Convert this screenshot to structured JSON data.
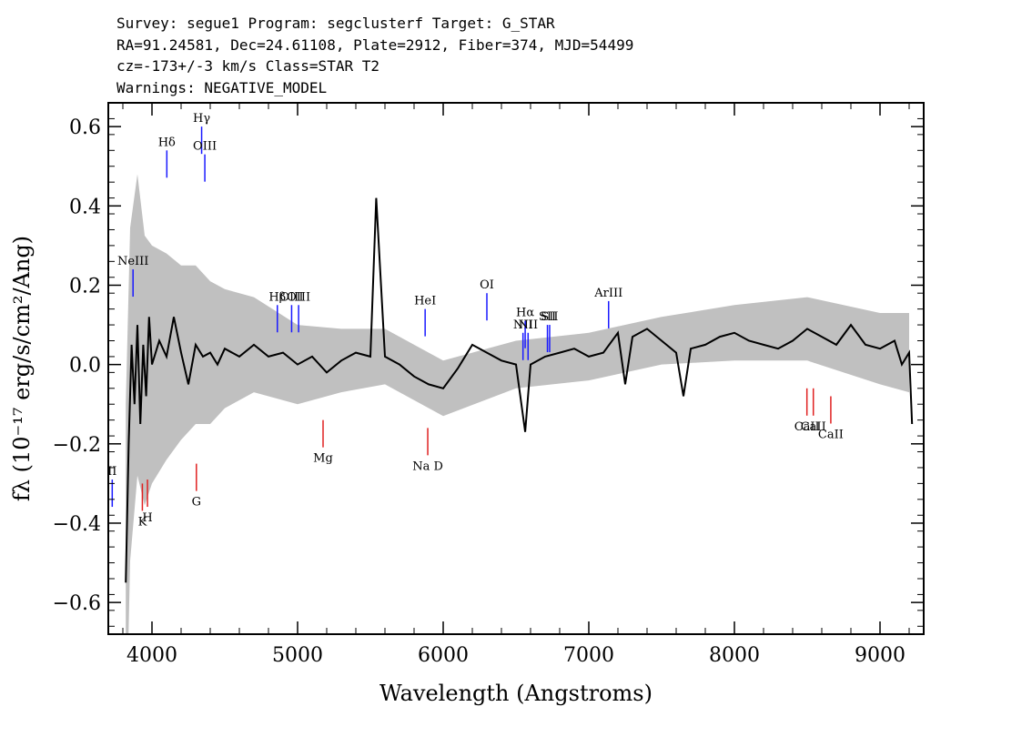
{
  "header": {
    "line1": "Survey: segue1 Program: segclusterf Target: G_STAR",
    "line2": "RA=91.24581, Dec=24.61108, Plate=2912, Fiber=374, MJD=54499",
    "line3": "cz=-173+/-3 km/s Class=STAR T2",
    "line4": "Warnings: NEGATIVE_MODEL"
  },
  "chart_data": {
    "type": "line",
    "title": "",
    "xlabel": "Wavelength (Angstroms)",
    "ylabel": "fλ (10⁻¹⁷ erg/s/cm²/Ang)",
    "xlim": [
      3700,
      9300
    ],
    "ylim": [
      -0.68,
      0.66
    ],
    "x_ticks": [
      4000,
      5000,
      6000,
      7000,
      8000,
      9000
    ],
    "y_ticks": [
      -0.6,
      -0.4,
      -0.2,
      0.0,
      0.2,
      0.4,
      0.6
    ],
    "x_tick_labels": [
      "4000",
      "5000",
      "6000",
      "7000",
      "8000",
      "9000"
    ],
    "y_tick_labels": [
      "−0.6",
      "−0.4",
      "−0.2",
      "0.0",
      "0.2",
      "0.4",
      "0.6"
    ],
    "grid": false,
    "series": [
      {
        "role": "error",
        "color": "#c0c0c0",
        "x": [
          3820,
          3850,
          3900,
          3950,
          4000,
          4100,
          4200,
          4300,
          4400,
          4500,
          4700,
          5000,
          5300,
          5600,
          6000,
          6500,
          7000,
          7500,
          8000,
          8500,
          9000,
          9200
        ],
        "y": [
          0.45,
          0.42,
          0.38,
          0.34,
          0.3,
          0.26,
          0.22,
          0.2,
          0.18,
          0.15,
          0.12,
          0.1,
          0.08,
          0.07,
          0.07,
          0.06,
          0.06,
          0.06,
          0.07,
          0.08,
          0.09,
          0.1
        ]
      },
      {
        "role": "flux",
        "color": "#000000",
        "x": [
          3820,
          3840,
          3860,
          3880,
          3900,
          3920,
          3940,
          3960,
          3980,
          4000,
          4050,
          4100,
          4150,
          4200,
          4250,
          4300,
          4350,
          4400,
          4450,
          4500,
          4600,
          4700,
          4800,
          4900,
          5000,
          5100,
          5200,
          5300,
          5400,
          5500,
          5540,
          5600,
          5700,
          5800,
          5900,
          6000,
          6100,
          6200,
          6300,
          6400,
          6500,
          6563,
          6600,
          6700,
          6800,
          6900,
          7000,
          7100,
          7200,
          7250,
          7300,
          7400,
          7500,
          7600,
          7650,
          7700,
          7800,
          7900,
          8000,
          8100,
          8200,
          8300,
          8400,
          8500,
          8600,
          8700,
          8800,
          8900,
          9000,
          9100,
          9150,
          9200,
          9220
        ],
        "y": [
          -0.55,
          -0.2,
          0.05,
          -0.1,
          0.1,
          -0.15,
          0.05,
          -0.08,
          0.12,
          0.0,
          0.06,
          0.02,
          0.12,
          0.03,
          -0.05,
          0.05,
          0.02,
          0.03,
          0.0,
          0.04,
          0.02,
          0.05,
          0.02,
          0.03,
          0.0,
          0.02,
          -0.02,
          0.01,
          0.03,
          0.02,
          0.42,
          0.02,
          0.0,
          -0.03,
          -0.05,
          -0.06,
          -0.01,
          0.05,
          0.03,
          0.01,
          0.0,
          -0.17,
          0.0,
          0.02,
          0.03,
          0.04,
          0.02,
          0.03,
          0.08,
          -0.05,
          0.07,
          0.09,
          0.06,
          0.03,
          -0.08,
          0.04,
          0.05,
          0.07,
          0.08,
          0.06,
          0.05,
          0.04,
          0.06,
          0.09,
          0.07,
          0.05,
          0.1,
          0.05,
          0.04,
          0.06,
          0.0,
          0.03,
          -0.15
        ]
      }
    ],
    "emission_lines": [
      {
        "label": "NeIII",
        "x": 3870,
        "y": 0.24,
        "color": "#1a1aff"
      },
      {
        "label": "Hδ",
        "x": 4102,
        "y": 0.54,
        "color": "#1a1aff"
      },
      {
        "label": "Hγ",
        "x": 4341,
        "y": 0.6,
        "color": "#1a1aff"
      },
      {
        "label": "OIII",
        "x": 4363,
        "y": 0.53,
        "color": "#1a1aff"
      },
      {
        "label": "Hβ",
        "x": 4861,
        "y": 0.15,
        "color": "#1a1aff"
      },
      {
        "label": "OIII",
        "x": 4959,
        "y": 0.15,
        "color": "#1a1aff"
      },
      {
        "label": "OIII",
        "x": 5007,
        "y": 0.15,
        "color": "#1a1aff"
      },
      {
        "label": "HeI",
        "x": 5876,
        "y": 0.14,
        "color": "#1a1aff"
      },
      {
        "label": "OI",
        "x": 6300,
        "y": 0.18,
        "color": "#1a1aff"
      },
      {
        "label": "NII",
        "x": 6548,
        "y": 0.08,
        "color": "#1a1aff"
      },
      {
        "label": "Hα",
        "x": 6563,
        "y": 0.11,
        "color": "#1a1aff"
      },
      {
        "label": "NII",
        "x": 6583,
        "y": 0.08,
        "color": "#1a1aff"
      },
      {
        "label": "SII",
        "x": 6716,
        "y": 0.1,
        "color": "#1a1aff"
      },
      {
        "label": "SII",
        "x": 6731,
        "y": 0.1,
        "color": "#1a1aff"
      },
      {
        "label": "ArIII",
        "x": 7136,
        "y": 0.16,
        "color": "#1a1aff"
      },
      {
        "label": "II",
        "x": 3727,
        "y": -0.29,
        "color": "#1a1aff"
      }
    ],
    "absorption_lines": [
      {
        "label": "K",
        "x": 3934,
        "y": -0.3,
        "color": "#e02020"
      },
      {
        "label": "H",
        "x": 3969,
        "y": -0.29,
        "color": "#e02020"
      },
      {
        "label": "G",
        "x": 4305,
        "y": -0.25,
        "color": "#e02020"
      },
      {
        "label": "Mg",
        "x": 5175,
        "y": -0.14,
        "color": "#e02020"
      },
      {
        "label": "Na D",
        "x": 5894,
        "y": -0.16,
        "color": "#e02020"
      },
      {
        "label": "CaII",
        "x": 8498,
        "y": -0.06,
        "color": "#e02020"
      },
      {
        "label": "CaII",
        "x": 8542,
        "y": -0.06,
        "color": "#e02020"
      },
      {
        "label": "CaII",
        "x": 8662,
        "y": -0.08,
        "color": "#e02020"
      }
    ]
  }
}
